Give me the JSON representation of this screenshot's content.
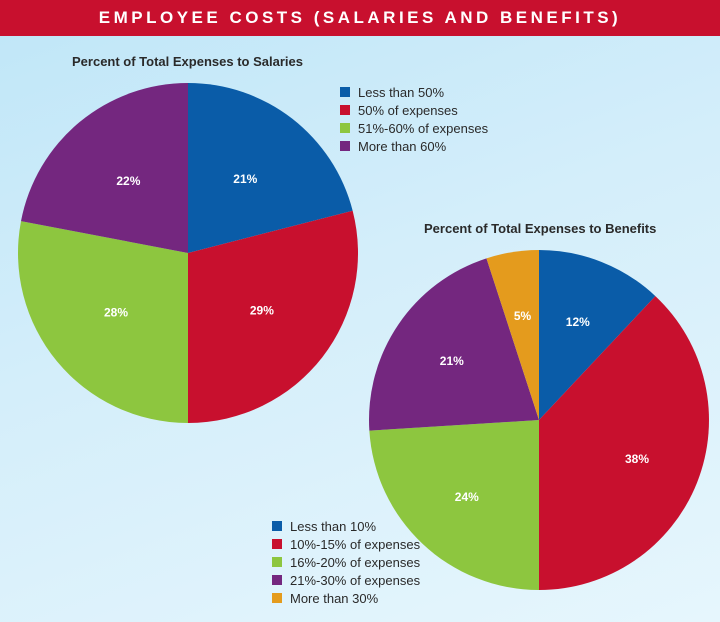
{
  "banner": {
    "title": "EMPLOYEE COSTS (SALARIES AND BENEFITS)"
  },
  "chart_data": [
    {
      "type": "pie",
      "title": "Percent of Total Expenses to Salaries",
      "slices": [
        {
          "label": "Less than 50%",
          "value": 21,
          "display": "21%",
          "color": "#0a5ca8"
        },
        {
          "label": "50% of expenses",
          "value": 29,
          "display": "29%",
          "color": "#c8102e"
        },
        {
          "label": "51%-60% of expenses",
          "value": 28,
          "display": "28%",
          "color": "#8dc63f"
        },
        {
          "label": "More than 60%",
          "value": 22,
          "display": "22%",
          "color": "#74277f"
        }
      ]
    },
    {
      "type": "pie",
      "title": "Percent of Total Expenses to Benefits",
      "slices": [
        {
          "label": "Less than 10%",
          "value": 12,
          "display": "12%",
          "color": "#0a5ca8"
        },
        {
          "label": "10%-15% of expenses",
          "value": 38,
          "display": "38%",
          "color": "#c8102e"
        },
        {
          "label": "16%-20% of expenses",
          "value": 24,
          "display": "24%",
          "color": "#8dc63f"
        },
        {
          "label": "21%-30% of expenses",
          "value": 21,
          "display": "21%",
          "color": "#74277f"
        },
        {
          "label": "More than 30%",
          "value": 5,
          "display": "5%",
          "color": "#e49b1d"
        }
      ]
    }
  ]
}
